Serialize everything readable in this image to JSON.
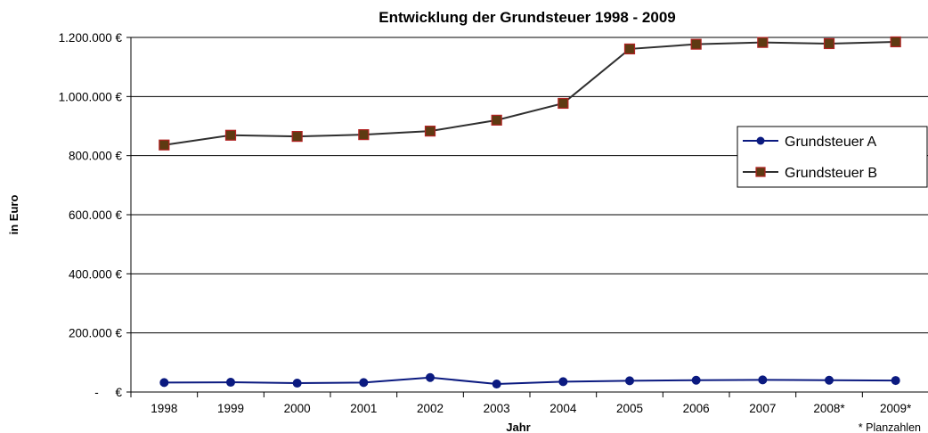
{
  "colors": {
    "series_a": "#0b1a80",
    "series_b_line": "#2f2f2f",
    "series_b_marker_fill": "#5e3a12",
    "series_b_marker_stroke": "#b22222",
    "grid": "#000000",
    "axis": "#000000"
  },
  "chart_data": {
    "type": "line",
    "title": "Entwicklung der Grundsteuer 1998 - 2009",
    "xlabel": "Jahr",
    "ylabel": "in Euro",
    "note": "* Planzahlen",
    "categories": [
      "1998",
      "1999",
      "2000",
      "2001",
      "2002",
      "2003",
      "2004",
      "2005",
      "2006",
      "2007",
      "2008*",
      "2009*"
    ],
    "ylim": [
      0,
      1200000
    ],
    "yticks": [
      0,
      200000,
      400000,
      600000,
      800000,
      1000000,
      1200000
    ],
    "ytick_labels": [
      "-     €",
      "200.000 €",
      "400.000 €",
      "600.000 €",
      "800.000 €",
      "1.000.000 €",
      "1.200.000 €"
    ],
    "grid": true,
    "legend_position": "right",
    "series": [
      {
        "name": "Grundsteuer A",
        "values": [
          32000,
          33000,
          30000,
          32000,
          49000,
          27000,
          35000,
          38000,
          40000,
          41000,
          40000,
          39000
        ]
      },
      {
        "name": "Grundsteuer B",
        "values": [
          836000,
          869000,
          865000,
          871000,
          883000,
          920000,
          977000,
          1161000,
          1177000,
          1183000,
          1179000,
          1185000
        ]
      }
    ]
  }
}
